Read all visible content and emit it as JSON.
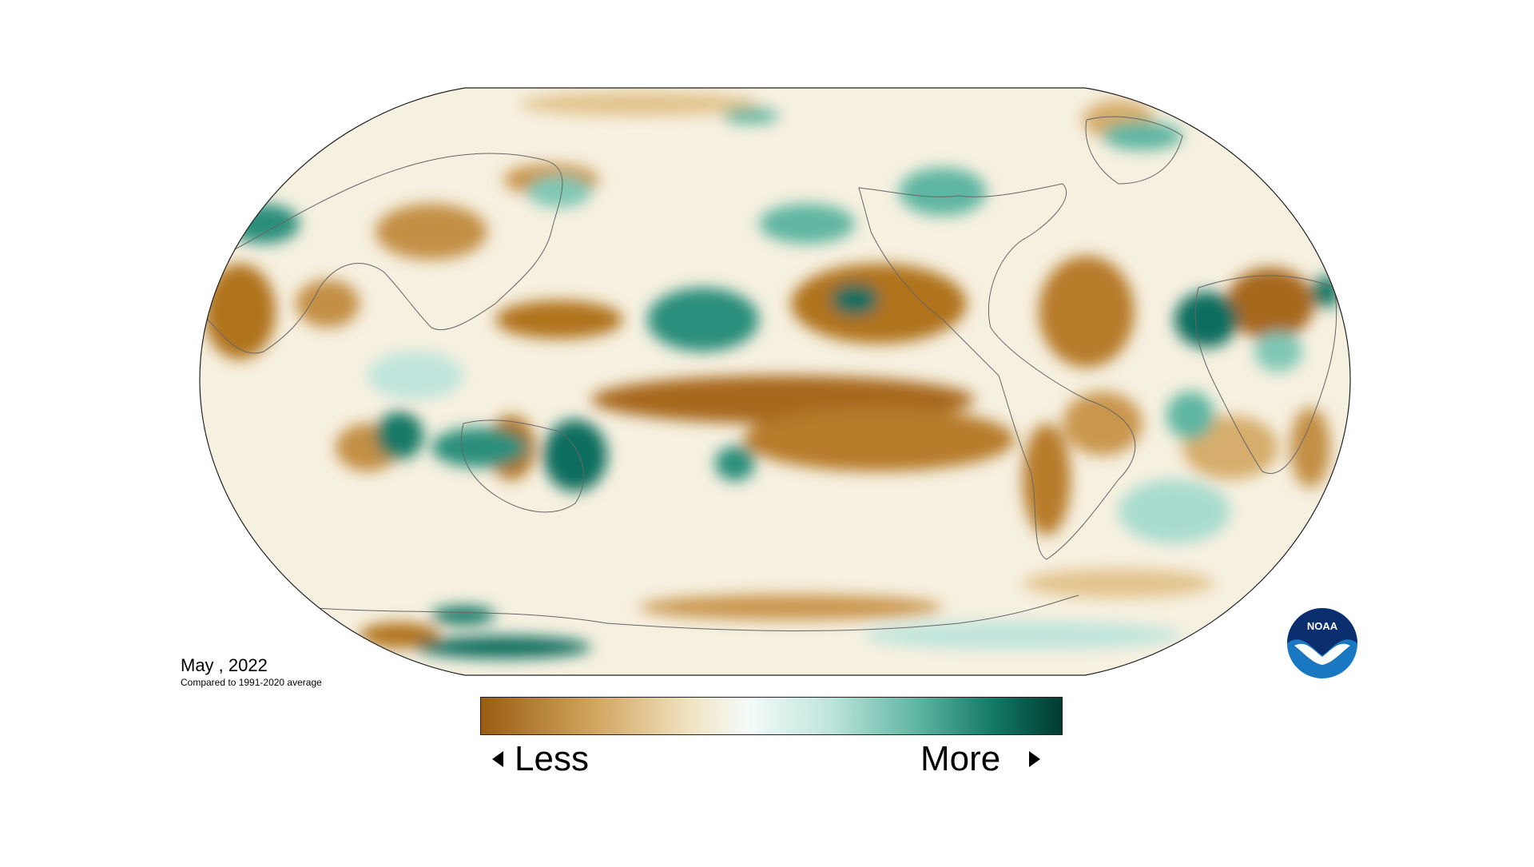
{
  "map": {
    "date_label": "May , 2022",
    "baseline_label": "Compared to 1991-2020 average"
  },
  "legend": {
    "less_label": "Less",
    "more_label": "More",
    "colors": [
      "#9a5d10",
      "#c99a52",
      "#f1e3c2",
      "#f4fbf9",
      "#bfe5dc",
      "#5fb6a2",
      "#137a66",
      "#003b30"
    ]
  },
  "logo": {
    "text": "NOAA"
  },
  "palette": {
    "dry_strong": "#9a5d10",
    "dry_light": "#d6ad6c",
    "wet_light": "#a8dccf",
    "wet_strong": "#0f6e5e",
    "noaa_blue": "#1a78c2",
    "noaa_navy": "#0a2e6e"
  }
}
